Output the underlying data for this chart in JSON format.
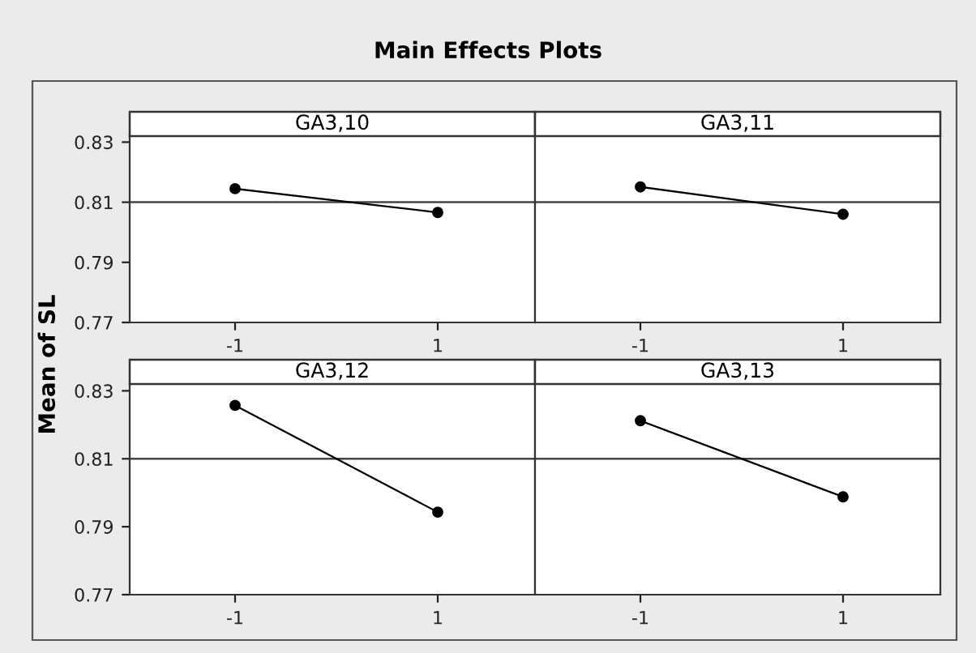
{
  "chart_data": [
    {
      "type": "line",
      "title": "GA3,10",
      "ylabel": "Mean of SL",
      "annotations": [
        "Main Effects Plots"
      ],
      "categories": [
        "-1",
        "1"
      ],
      "series": [
        {
          "color": "#000000",
          "values": [
            0.8145,
            0.8066
          ]
        }
      ],
      "ylim": [
        0.77,
        0.832
      ],
      "yticks": [
        0.77,
        0.79,
        0.81,
        0.83
      ],
      "ref_lines": [
        {
          "axis": "y",
          "value": 0.81,
          "label": null
        }
      ],
      "marker": "circle",
      "line_style": "solid"
    },
    {
      "type": "line",
      "title": "GA3,11",
      "categories": [
        "-1",
        "1"
      ],
      "series": [
        {
          "color": "#000000",
          "values": [
            0.8151,
            0.806
          ]
        }
      ],
      "ylim": [
        0.77,
        0.832
      ],
      "yticks": [
        0.77,
        0.79,
        0.81,
        0.83
      ],
      "tick_labels": "x",
      "ref_lines": [
        {
          "axis": "y",
          "value": 0.81,
          "label": null
        }
      ],
      "marker": "circle",
      "line_style": "solid"
    },
    {
      "type": "line",
      "title": "GA3,12",
      "categories": [
        "-1",
        "1"
      ],
      "series": [
        {
          "color": "#000000",
          "values": [
            0.8257,
            0.7943
          ]
        }
      ],
      "ylim": [
        0.77,
        0.832
      ],
      "yticks": [
        0.77,
        0.79,
        0.81,
        0.83
      ],
      "ref_lines": [
        {
          "axis": "y",
          "value": 0.81,
          "label": null
        }
      ],
      "marker": "circle",
      "line_style": "solid"
    },
    {
      "type": "line",
      "title": "GA3,13",
      "categories": [
        "-1",
        "1"
      ],
      "series": [
        {
          "color": "#000000",
          "values": [
            0.8212,
            0.7988
          ]
        }
      ],
      "ylim": [
        0.77,
        0.832
      ],
      "yticks": [
        0.77,
        0.79,
        0.81,
        0.83
      ],
      "tick_labels": "x",
      "ref_lines": [
        {
          "axis": "y",
          "value": 0.81,
          "label": null
        }
      ],
      "marker": "circle",
      "line_style": "solid"
    }
  ]
}
